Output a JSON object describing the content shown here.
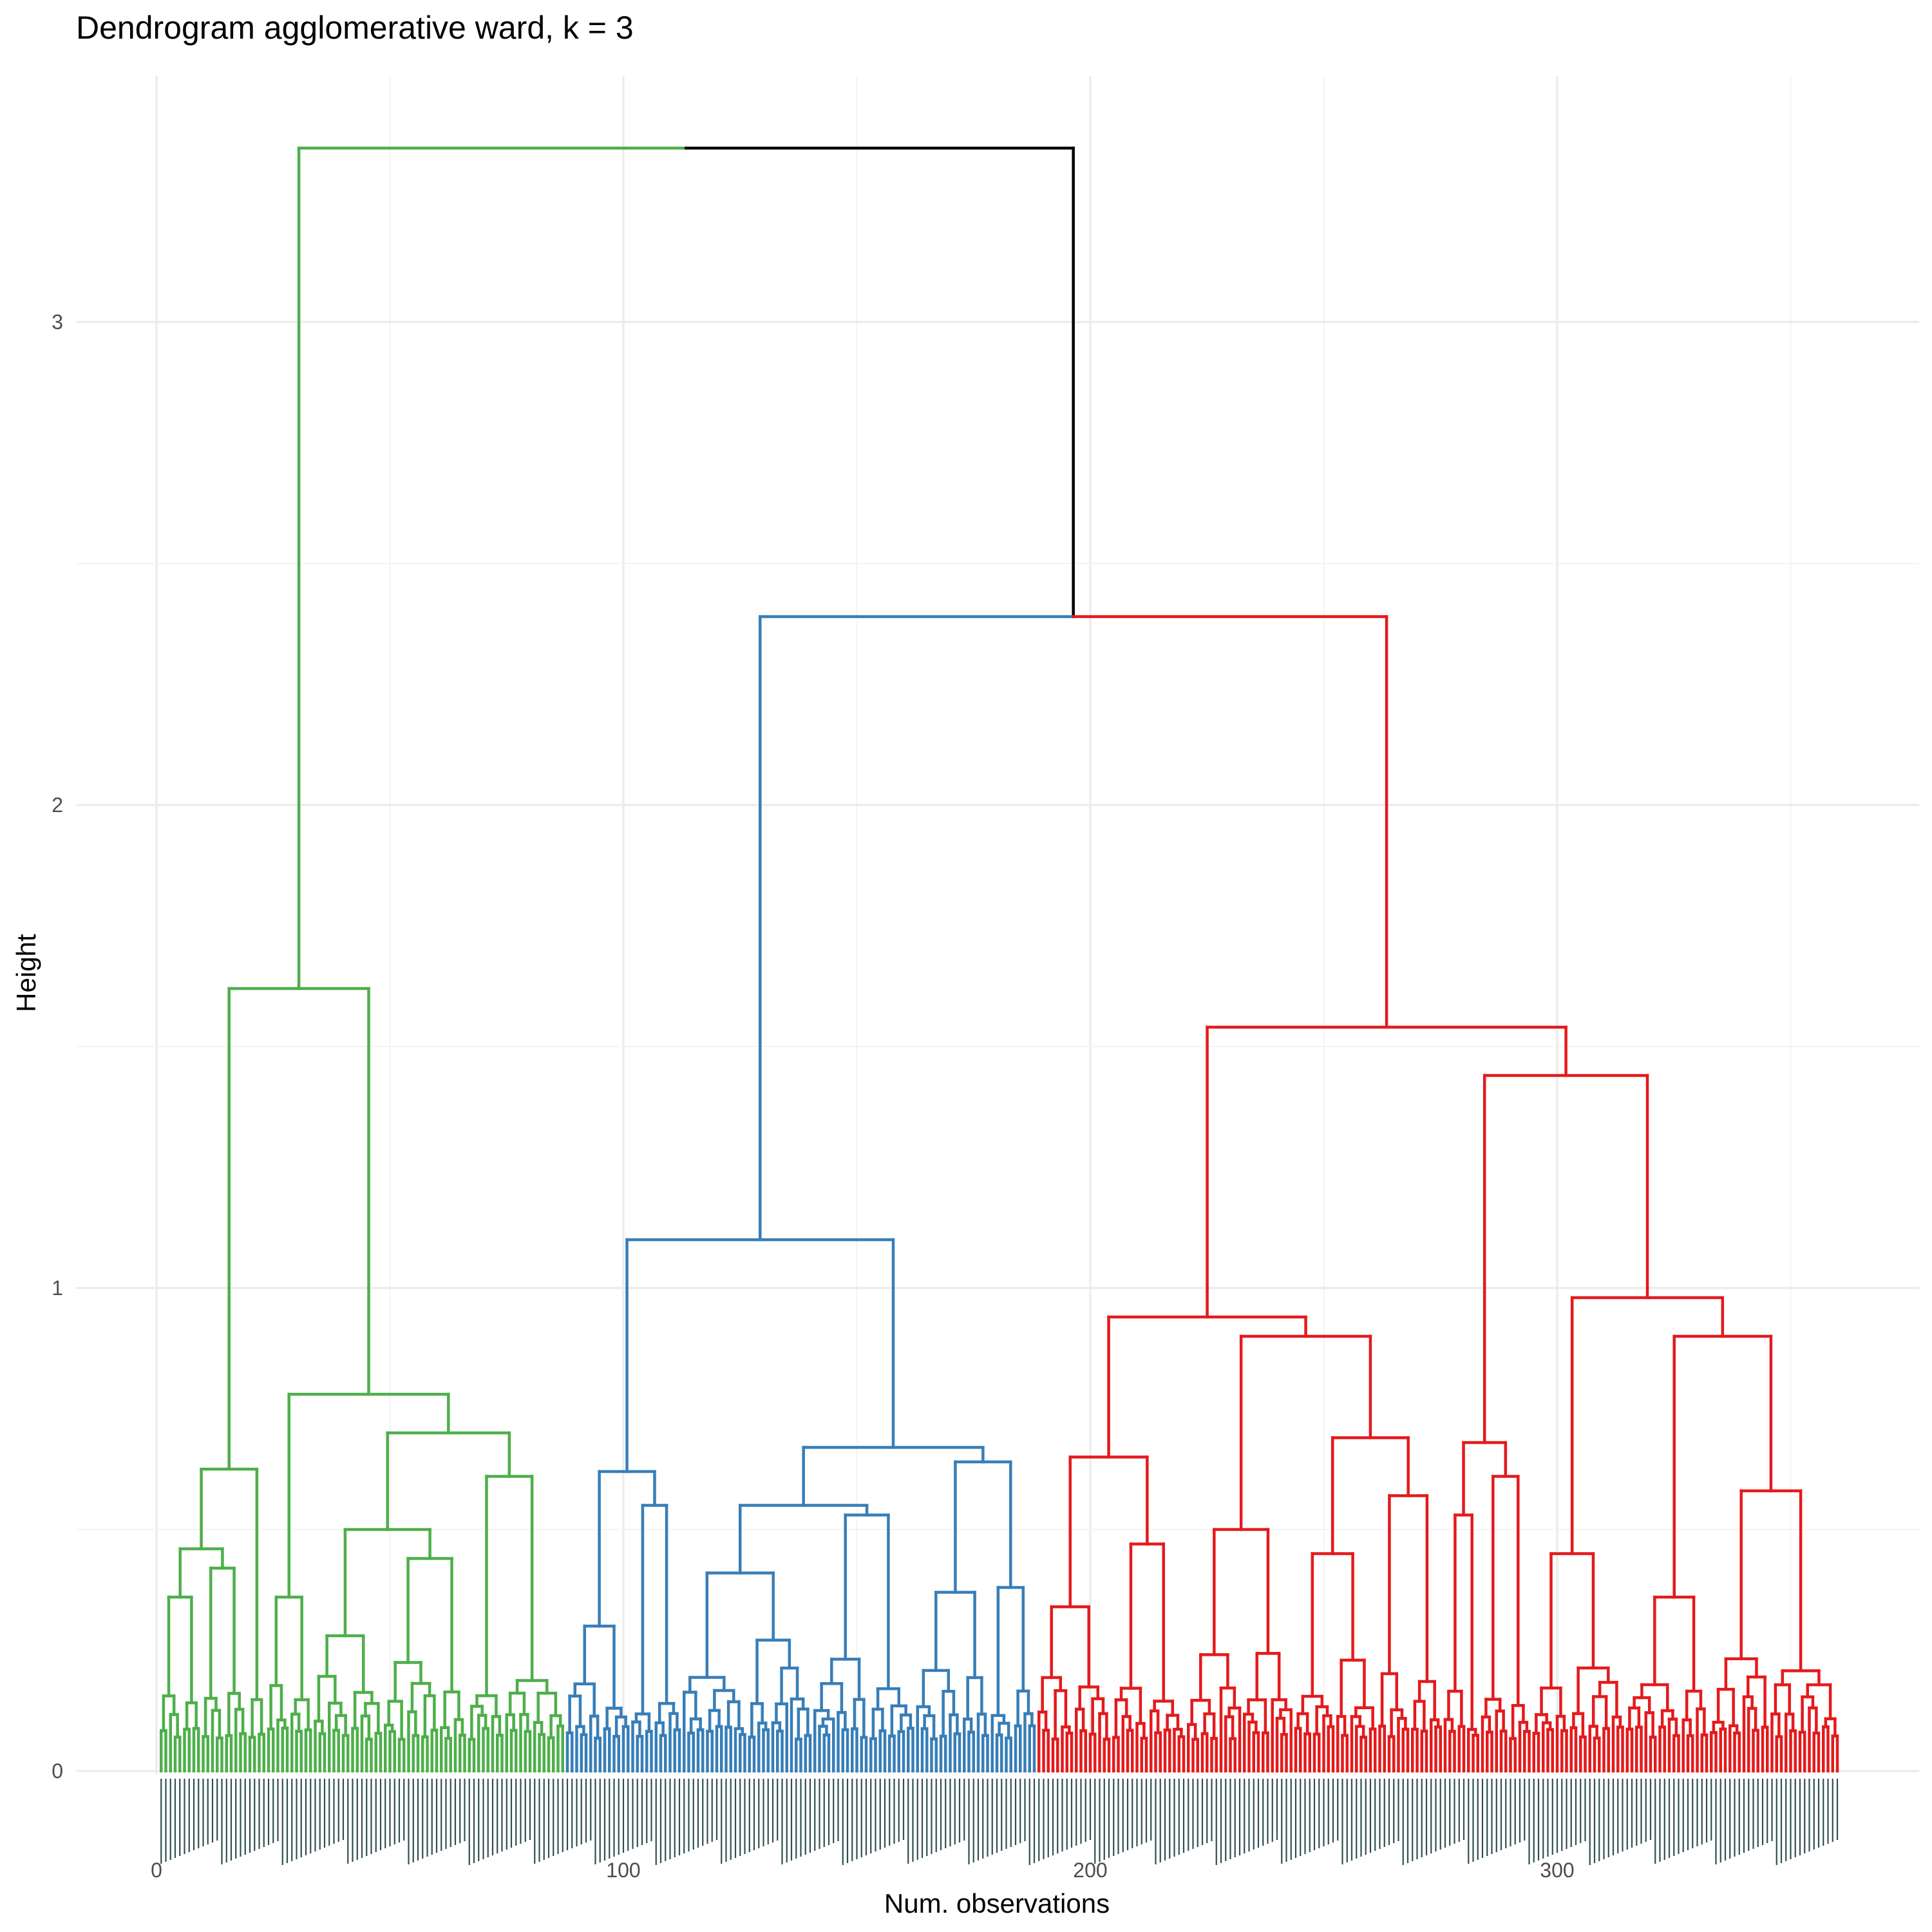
{
  "chart_data": {
    "type": "dendrogram",
    "title": "Dendrogram agglomerative ward, k = 3",
    "xlabel": "Num. observations",
    "ylabel": "Height",
    "xlim": [
      0,
      365
    ],
    "ylim": [
      0,
      3.4
    ],
    "x_ticks": [
      0,
      100,
      200,
      300
    ],
    "x_tick_labels": [
      "0",
      "100",
      "200",
      "300"
    ],
    "y_ticks": [
      0,
      1,
      2,
      3
    ],
    "y_tick_labels": [
      "0",
      "1",
      "2",
      "3"
    ],
    "grid": true,
    "n_leaves": 360,
    "k": 3,
    "colors": {
      "cluster_1": "#4daf4a",
      "cluster_2": "#377eb8",
      "cluster_3": "#e41a1c",
      "root": "#000000",
      "leaf_label": "#2f4f4f"
    },
    "clusters": [
      {
        "id": 1,
        "color": "#4daf4a",
        "leaf_range": [
          1,
          87
        ]
      },
      {
        "id": 2,
        "color": "#377eb8",
        "leaf_range": [
          88,
          188
        ]
      },
      {
        "id": 3,
        "color": "#e41a1c",
        "leaf_range": [
          189,
          360
        ]
      }
    ],
    "merges": [
      {
        "height": 3.36,
        "children_x": [
          108.5,
          191.5
        ],
        "color": "root"
      },
      {
        "height": 2.39,
        "children_x": [
          127.5,
          257
        ],
        "color": "mixed"
      },
      {
        "height": 1.62,
        "children_x": [
          11,
          41
        ],
        "color": "cluster_1"
      },
      {
        "height": 0.78,
        "children_x": [
          22.5,
          60
        ],
        "color": "cluster_1"
      },
      {
        "height": 0.7,
        "children_x": [
          43.5,
          77.5
        ],
        "color": "cluster_1"
      },
      {
        "height": 1.1,
        "children_x": [
          98.5,
          155.5
        ],
        "color": "cluster_2"
      },
      {
        "height": 0.67,
        "children_x": [
          137,
          175
        ],
        "color": "cluster_2"
      },
      {
        "height": 1.54,
        "children_x": [
          219,
          295
        ],
        "color": "cluster_3"
      },
      {
        "height": 1.44,
        "children_x": [
          278,
          312.5
        ],
        "color": "cluster_3"
      },
      {
        "height": 0.94,
        "children_x": [
          201,
          237
        ],
        "color": "cluster_3"
      },
      {
        "height": 0.98,
        "children_x": [
          295,
          324.5
        ],
        "color": "cluster_3"
      }
    ]
  }
}
